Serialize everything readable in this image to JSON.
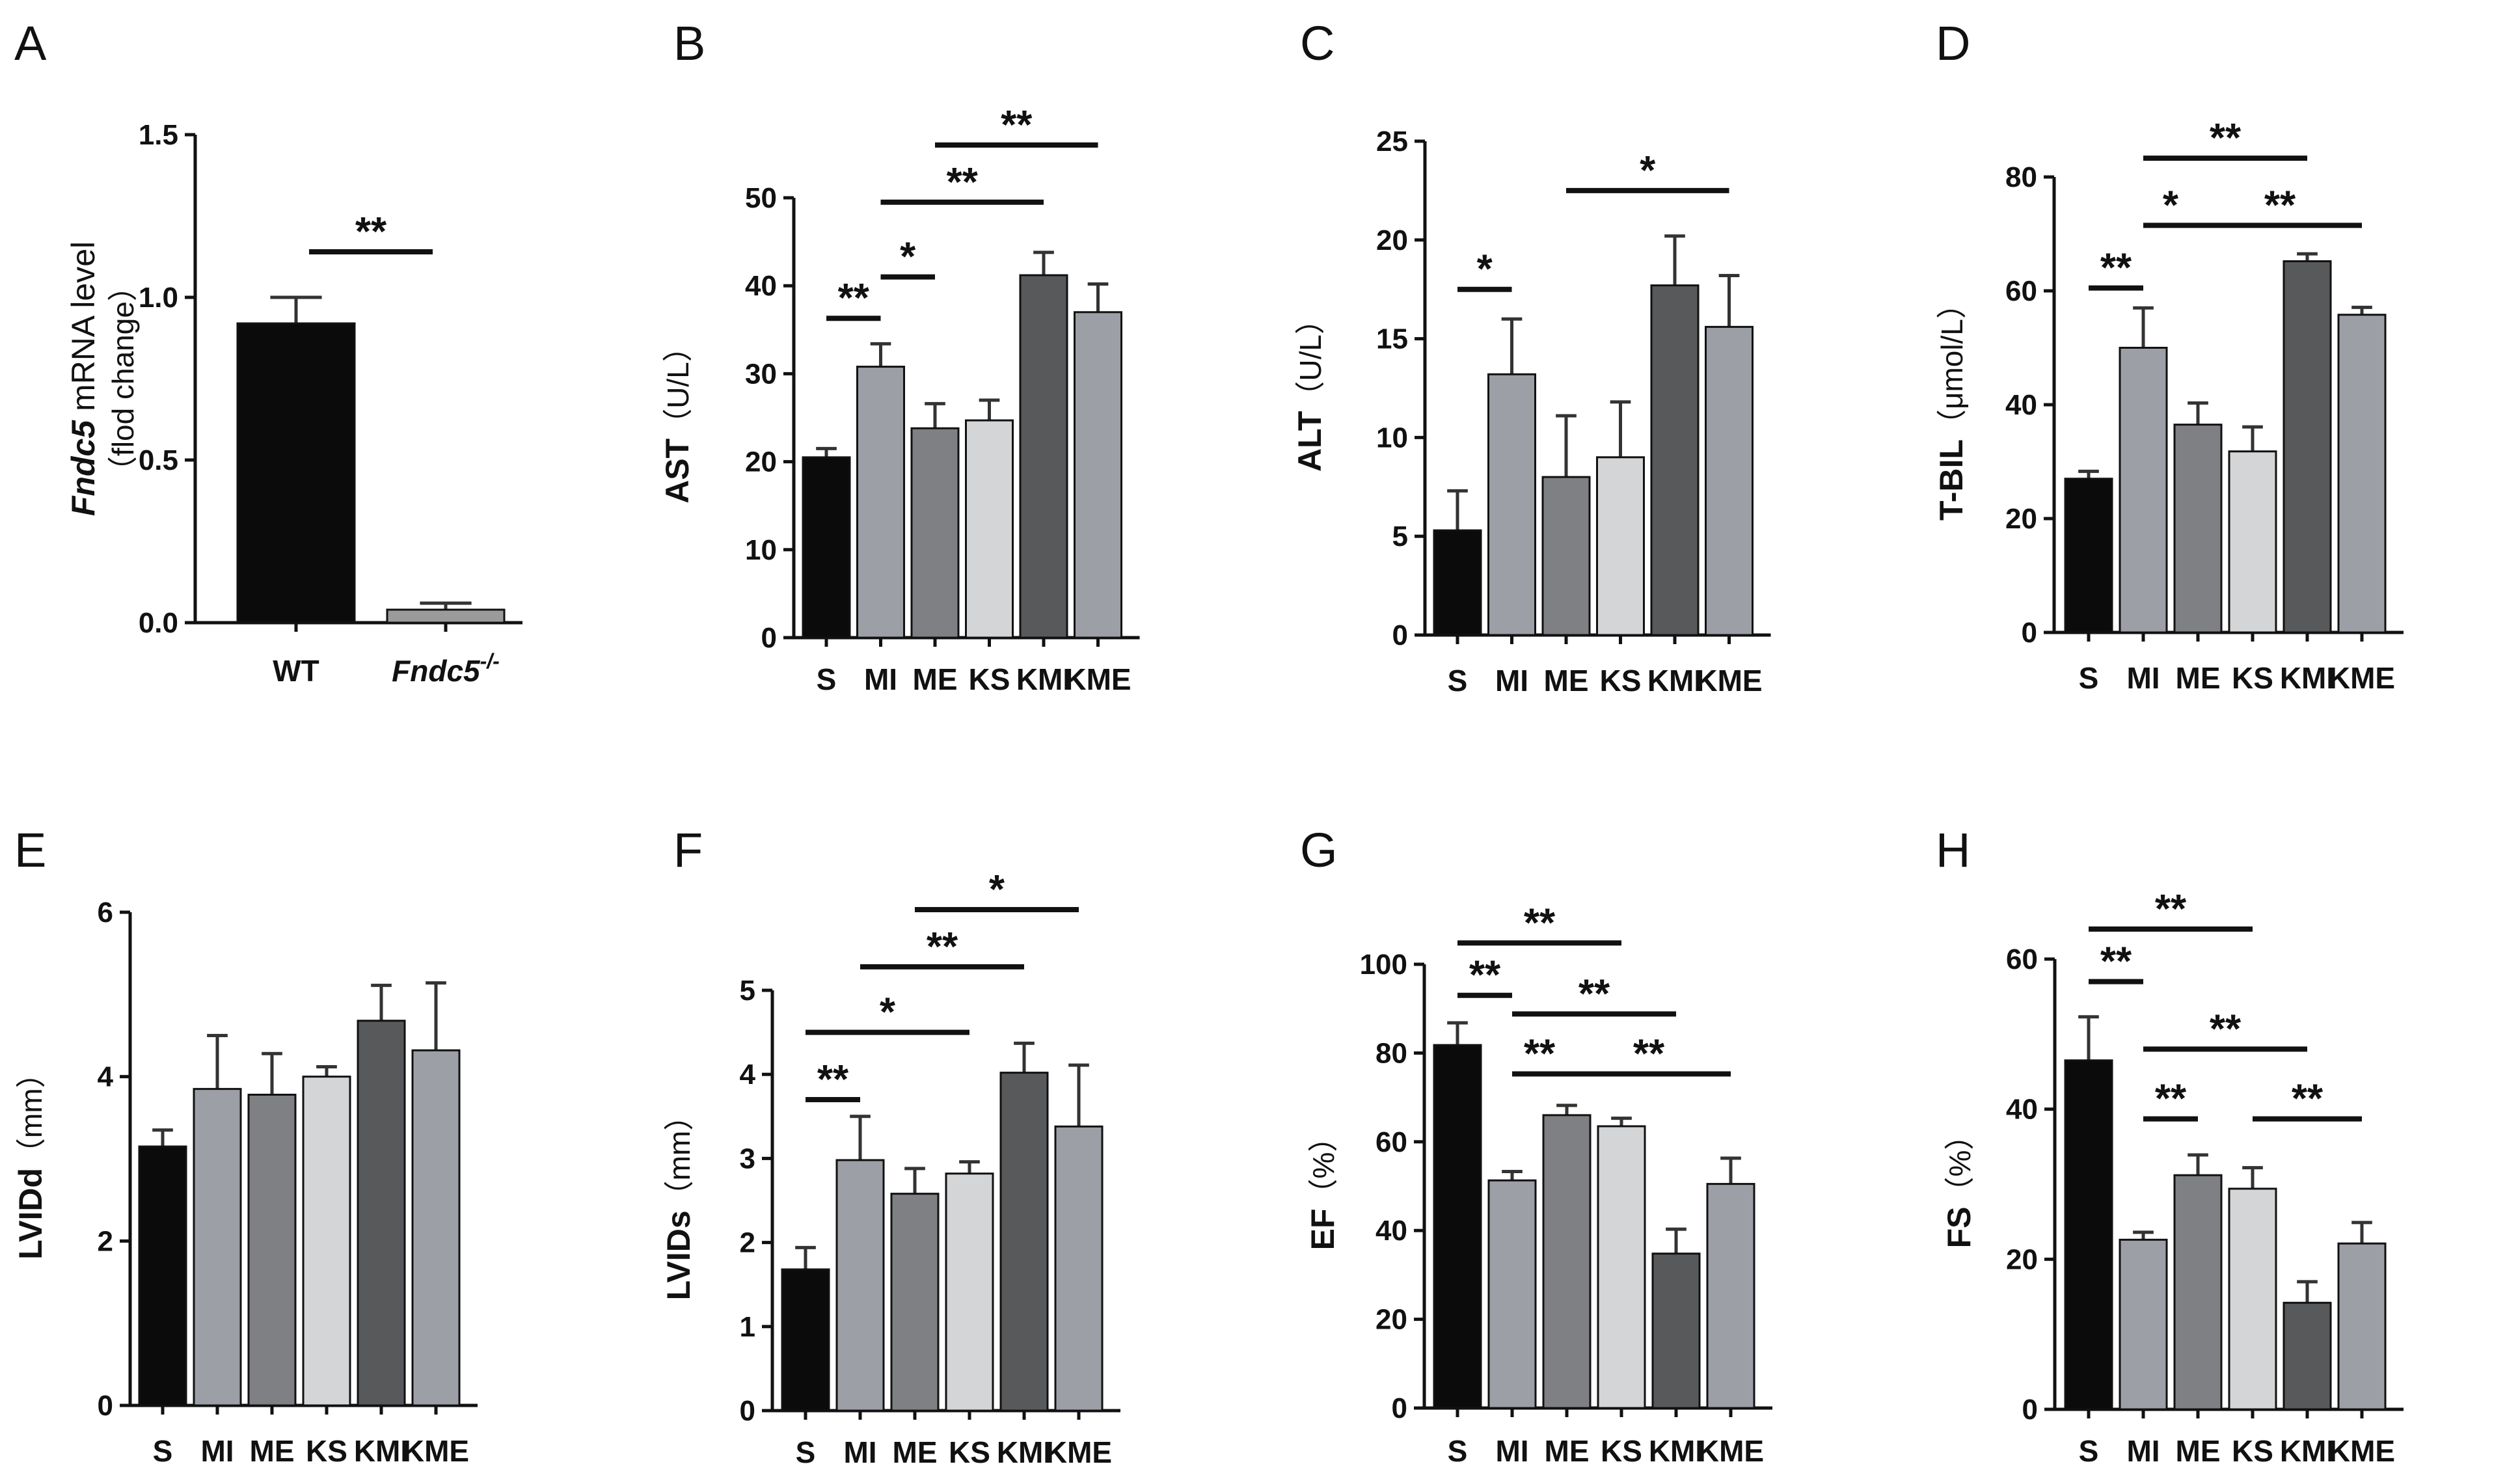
{
  "figure": {
    "panel_letters": [
      "A",
      "B",
      "C",
      "D",
      "E",
      "F",
      "G",
      "H"
    ]
  },
  "colors": {
    "black": "#0b0b0b",
    "grey_mid": "#9d9fa6",
    "grey_dark": "#7e8083",
    "grey_light": "#d4d5d6",
    "grey_darker": "#58595b",
    "grey_wt_ko": "#9b9b9b"
  },
  "chart_data": [
    {
      "panel": "A",
      "type": "bar",
      "ylabel_prefix": "Fndc5",
      "ylabel_rest": " mRNA level",
      "ylabel_line2": "（flod change）",
      "categories": [
        "WT",
        "Fndc5"
      ],
      "category_superscript": [
        "",
        "-/-"
      ],
      "category_italic": [
        false,
        true
      ],
      "values": [
        0.92,
        0.04
      ],
      "errors": [
        0.08,
        0.02
      ],
      "ylim": [
        0,
        1.5
      ],
      "yticks": [
        "0.0",
        "0.5",
        "1.0",
        "1.5"
      ],
      "ytick_values": [
        0,
        0.5,
        1.0,
        1.5
      ],
      "bar_color_keys": [
        "black",
        "grey_wt_ko"
      ],
      "significance": [
        {
          "from": 0,
          "to": 1,
          "label": "**",
          "y": 1.14
        }
      ]
    },
    {
      "panel": "B",
      "type": "bar",
      "ylabel_main": "AST",
      "ylabel_sub": "（U/L）",
      "categories": [
        "S",
        "MI",
        "ME",
        "KS",
        "KMI",
        "KME"
      ],
      "values": [
        20.5,
        30.8,
        23.8,
        24.7,
        41.2,
        37.0
      ],
      "errors": [
        1.0,
        2.6,
        2.8,
        2.3,
        2.6,
        3.2
      ],
      "ylim": [
        0,
        50
      ],
      "yticks": [
        "0",
        "10",
        "20",
        "30",
        "40",
        "50"
      ],
      "ytick_values": [
        0,
        10,
        20,
        30,
        40,
        50
      ],
      "bar_color_keys": [
        "black",
        "grey_mid",
        "grey_dark",
        "grey_light",
        "grey_darker",
        "grey_mid"
      ],
      "significance": [
        {
          "from": 0,
          "to": 1,
          "label": "**",
          "y": 36.3
        },
        {
          "from": 1,
          "to": 2,
          "label": "*",
          "y": 41.0
        },
        {
          "from": 1,
          "to": 4,
          "label": "**",
          "y": 49.5
        },
        {
          "from": 2,
          "to": 5,
          "label": "**",
          "y": 56.0
        }
      ]
    },
    {
      "panel": "C",
      "type": "bar",
      "ylabel_main": "ALT",
      "ylabel_sub": "（U/L）",
      "categories": [
        "S",
        "MI",
        "ME",
        "KS",
        "KMI",
        "KME"
      ],
      "values": [
        5.3,
        13.2,
        8.0,
        9.0,
        17.7,
        15.6
      ],
      "errors": [
        2.0,
        2.8,
        3.1,
        2.8,
        2.5,
        2.6
      ],
      "ylim": [
        0,
        25
      ],
      "yticks": [
        "0",
        "5",
        "10",
        "15",
        "20",
        "25"
      ],
      "ytick_values": [
        0,
        5,
        10,
        15,
        20,
        25
      ],
      "bar_color_keys": [
        "black",
        "grey_mid",
        "grey_dark",
        "grey_light",
        "grey_darker",
        "grey_mid"
      ],
      "significance": [
        {
          "from": 0,
          "to": 1,
          "label": "*",
          "y": 17.5
        },
        {
          "from": 2,
          "to": 5,
          "label": "*",
          "y": 22.5
        }
      ]
    },
    {
      "panel": "D",
      "type": "bar",
      "ylabel_main": "T-BIL",
      "ylabel_sub": "（μmol/L）",
      "categories": [
        "S",
        "MI",
        "ME",
        "KS",
        "KMI",
        "KME"
      ],
      "values": [
        27.0,
        50.0,
        36.5,
        31.8,
        65.2,
        55.8
      ],
      "errors": [
        1.3,
        7.0,
        3.8,
        4.3,
        1.3,
        1.3
      ],
      "ylim": [
        0,
        80
      ],
      "yticks": [
        "0",
        "20",
        "40",
        "60",
        "80"
      ],
      "ytick_values": [
        0,
        20,
        40,
        60,
        80
      ],
      "bar_color_keys": [
        "black",
        "grey_mid",
        "grey_dark",
        "grey_light",
        "grey_darker",
        "grey_mid"
      ],
      "significance": [
        {
          "from": 0,
          "to": 1,
          "label": "**",
          "y": 60.5
        },
        {
          "from": 1,
          "to": 2,
          "label": "*",
          "y": 71.5
        },
        {
          "from": 2,
          "to": 5,
          "label": "**",
          "y": 71.5
        },
        {
          "from": 1,
          "to": 4,
          "label": "**",
          "y": 83.3
        }
      ]
    },
    {
      "panel": "E",
      "type": "bar",
      "ylabel_main": "LVIDd",
      "ylabel_sub": "（mm）",
      "categories": [
        "S",
        "MI",
        "ME",
        "KS",
        "KMI",
        "KME"
      ],
      "values": [
        3.15,
        3.85,
        3.78,
        4.0,
        4.68,
        4.32
      ],
      "errors": [
        0.2,
        0.65,
        0.5,
        0.12,
        0.43,
        0.82
      ],
      "ylim": [
        0,
        6
      ],
      "yticks": [
        "0",
        "2",
        "4",
        "6"
      ],
      "ytick_values": [
        0,
        2,
        4,
        6
      ],
      "bar_color_keys": [
        "black",
        "grey_mid",
        "grey_dark",
        "grey_light",
        "grey_darker",
        "grey_mid"
      ],
      "significance": []
    },
    {
      "panel": "F",
      "type": "bar",
      "ylabel_main": "LVIDs",
      "ylabel_sub": "（mm）",
      "categories": [
        "S",
        "MI",
        "ME",
        "KS",
        "KMI",
        "KME"
      ],
      "values": [
        1.68,
        2.98,
        2.58,
        2.82,
        4.02,
        3.38
      ],
      "errors": [
        0.26,
        0.52,
        0.3,
        0.14,
        0.35,
        0.73
      ],
      "ylim": [
        0,
        5
      ],
      "yticks": [
        "0",
        "1",
        "2",
        "3",
        "4",
        "5"
      ],
      "ytick_values": [
        0,
        1,
        2,
        3,
        4,
        5
      ],
      "bar_color_keys": [
        "black",
        "grey_mid",
        "grey_dark",
        "grey_light",
        "grey_darker",
        "grey_mid"
      ],
      "significance": [
        {
          "from": 0,
          "to": 1,
          "label": "**",
          "y": 3.7
        },
        {
          "from": 0,
          "to": 3,
          "label": "*",
          "y": 4.5
        },
        {
          "from": 1,
          "to": 4,
          "label": "**",
          "y": 5.28
        },
        {
          "from": 2,
          "to": 5,
          "label": "*",
          "y": 5.96
        }
      ]
    },
    {
      "panel": "G",
      "type": "bar",
      "ylabel_main": "EF",
      "ylabel_sub": "（%）",
      "categories": [
        "S",
        "MI",
        "ME",
        "KS",
        "KMI",
        "KME"
      ],
      "values": [
        81.8,
        51.3,
        66.0,
        63.5,
        34.8,
        50.5
      ],
      "errors": [
        5.0,
        2.0,
        2.2,
        1.8,
        5.5,
        5.8
      ],
      "ylim": [
        0,
        100
      ],
      "yticks": [
        "0",
        "20",
        "40",
        "60",
        "80",
        "100"
      ],
      "ytick_values": [
        0,
        20,
        40,
        60,
        80,
        100
      ],
      "bar_color_keys": [
        "black",
        "grey_mid",
        "grey_dark",
        "grey_light",
        "grey_darker",
        "grey_mid"
      ],
      "significance": [
        {
          "from": 0,
          "to": 1,
          "label": "**",
          "y": 93.0
        },
        {
          "from": 0,
          "to": 3,
          "label": "**",
          "y": 104.8
        },
        {
          "from": 1,
          "to": 4,
          "label": "**",
          "y": 88.8
        },
        {
          "from": 1,
          "to": 2,
          "label": "**",
          "y": 75.3
        },
        {
          "from": 2,
          "to": 5,
          "label": "**",
          "y": 75.3
        }
      ]
    },
    {
      "panel": "H",
      "type": "bar",
      "ylabel_main": "FS",
      "ylabel_sub": "（%）",
      "categories": [
        "S",
        "MI",
        "ME",
        "KS",
        "KMI",
        "KME"
      ],
      "values": [
        46.5,
        22.6,
        31.2,
        29.4,
        14.2,
        22.1
      ],
      "errors": [
        5.8,
        1.0,
        2.7,
        2.8,
        2.8,
        2.8
      ],
      "ylim": [
        0,
        60
      ],
      "yticks": [
        "0",
        "20",
        "40",
        "60"
      ],
      "ytick_values": [
        0,
        20,
        40,
        60
      ],
      "bar_color_keys": [
        "black",
        "grey_mid",
        "grey_dark",
        "grey_light",
        "grey_darker",
        "grey_mid"
      ],
      "significance": [
        {
          "from": 0,
          "to": 1,
          "label": "**",
          "y": 57.0
        },
        {
          "from": 0,
          "to": 3,
          "label": "**",
          "y": 64.0
        },
        {
          "from": 1,
          "to": 4,
          "label": "**",
          "y": 48.0
        },
        {
          "from": 1,
          "to": 2,
          "label": "**",
          "y": 38.7
        },
        {
          "from": 3,
          "to": 5,
          "label": "**",
          "y": 38.7
        }
      ]
    }
  ]
}
